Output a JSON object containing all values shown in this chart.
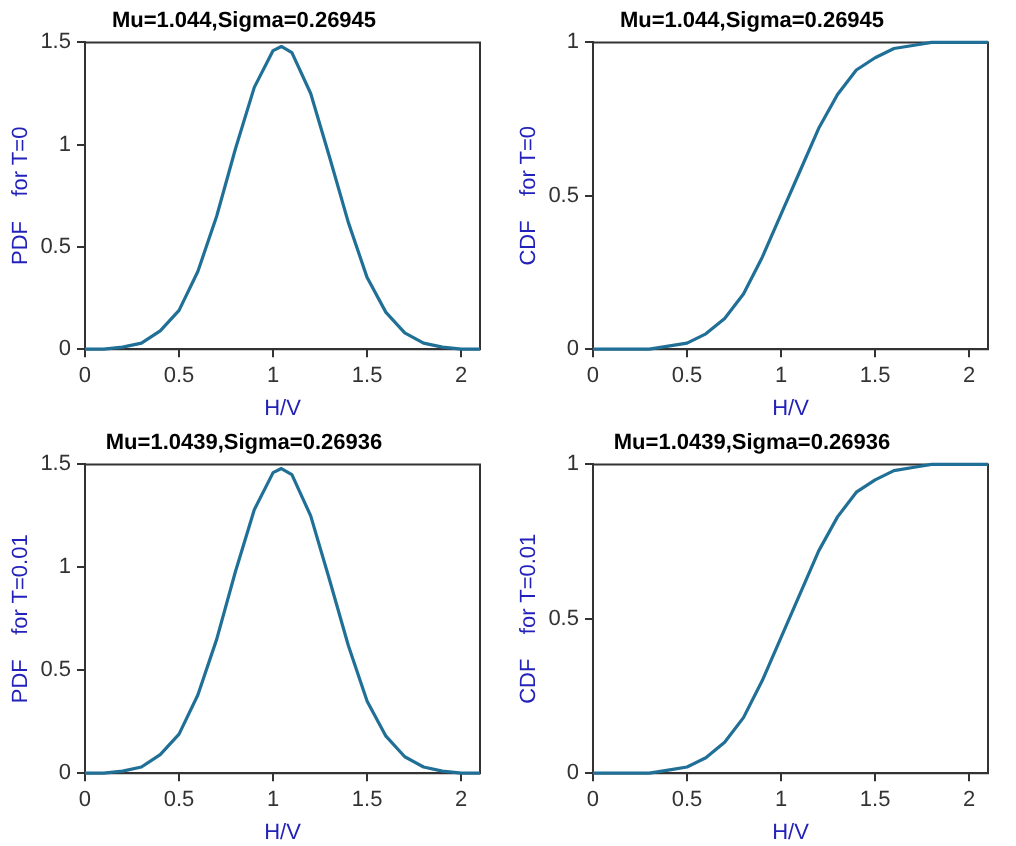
{
  "chart_data": [
    {
      "type": "line",
      "title": "Mu=1.044,Sigma=0.26945",
      "xlabel": "H/V",
      "ylabel": "PDF    for T=0",
      "x": [
        0,
        0.1,
        0.2,
        0.3,
        0.4,
        0.5,
        0.6,
        0.7,
        0.8,
        0.9,
        1.0,
        1.044,
        1.1,
        1.2,
        1.3,
        1.4,
        1.5,
        1.6,
        1.7,
        1.8,
        1.9,
        2.0,
        2.1
      ],
      "series": [
        {
          "color": "#1f6f96",
          "values": [
            0,
            0,
            0.01,
            0.03,
            0.09,
            0.19,
            0.38,
            0.65,
            0.98,
            1.28,
            1.46,
            1.48,
            1.45,
            1.25,
            0.94,
            0.62,
            0.35,
            0.18,
            0.08,
            0.03,
            0.01,
            0,
            0
          ]
        }
      ],
      "xlim": [
        0,
        2.1
      ],
      "ylim": [
        0,
        1.5
      ],
      "xticks": [
        0,
        0.5,
        1,
        1.5,
        2
      ],
      "yticks": [
        0,
        0.5,
        1,
        1.5
      ]
    },
    {
      "type": "line",
      "title": "Mu=1.044,Sigma=0.26945",
      "xlabel": "H/V",
      "ylabel": "CDF    for T=0",
      "x": [
        0,
        0.1,
        0.2,
        0.3,
        0.4,
        0.5,
        0.6,
        0.7,
        0.8,
        0.9,
        1.0,
        1.1,
        1.2,
        1.3,
        1.4,
        1.5,
        1.6,
        1.7,
        1.8,
        1.9,
        2.0,
        2.1
      ],
      "series": [
        {
          "color": "#1f6f96",
          "values": [
            0,
            0,
            0,
            0,
            0.01,
            0.02,
            0.05,
            0.1,
            0.18,
            0.3,
            0.44,
            0.58,
            0.72,
            0.83,
            0.91,
            0.95,
            0.98,
            0.99,
            1,
            1,
            1,
            1
          ]
        }
      ],
      "xlim": [
        0,
        2.1
      ],
      "ylim": [
        0,
        1
      ],
      "xticks": [
        0,
        0.5,
        1,
        1.5,
        2
      ],
      "yticks": [
        0,
        0.5,
        1
      ]
    },
    {
      "type": "line",
      "title": "Mu=1.0439,Sigma=0.26936",
      "xlabel": "H/V",
      "ylabel": "PDF    for T=0.01",
      "x": [
        0,
        0.1,
        0.2,
        0.3,
        0.4,
        0.5,
        0.6,
        0.7,
        0.8,
        0.9,
        1.0,
        1.044,
        1.1,
        1.2,
        1.3,
        1.4,
        1.5,
        1.6,
        1.7,
        1.8,
        1.9,
        2.0,
        2.1
      ],
      "series": [
        {
          "color": "#1f6f96",
          "values": [
            0,
            0,
            0.01,
            0.03,
            0.09,
            0.19,
            0.38,
            0.65,
            0.98,
            1.28,
            1.46,
            1.48,
            1.45,
            1.25,
            0.94,
            0.62,
            0.35,
            0.18,
            0.08,
            0.03,
            0.01,
            0,
            0
          ]
        }
      ],
      "xlim": [
        0,
        2.1
      ],
      "ylim": [
        0,
        1.5
      ],
      "xticks": [
        0,
        0.5,
        1,
        1.5,
        2
      ],
      "yticks": [
        0,
        0.5,
        1,
        1.5
      ]
    },
    {
      "type": "line",
      "title": "Mu=1.0439,Sigma=0.26936",
      "xlabel": "H/V",
      "ylabel": "CDF    for T=0.01",
      "x": [
        0,
        0.1,
        0.2,
        0.3,
        0.4,
        0.5,
        0.6,
        0.7,
        0.8,
        0.9,
        1.0,
        1.1,
        1.2,
        1.3,
        1.4,
        1.5,
        1.6,
        1.7,
        1.8,
        1.9,
        2.0,
        2.1
      ],
      "series": [
        {
          "color": "#1f6f96",
          "values": [
            0,
            0,
            0,
            0,
            0.01,
            0.02,
            0.05,
            0.1,
            0.18,
            0.3,
            0.44,
            0.58,
            0.72,
            0.83,
            0.91,
            0.95,
            0.98,
            0.99,
            1,
            1,
            1,
            1
          ]
        }
      ],
      "xlim": [
        0,
        2.1
      ],
      "ylim": [
        0,
        1
      ],
      "xticks": [
        0,
        0.5,
        1,
        1.5,
        2
      ],
      "yticks": [
        0,
        0.5,
        1
      ]
    }
  ]
}
